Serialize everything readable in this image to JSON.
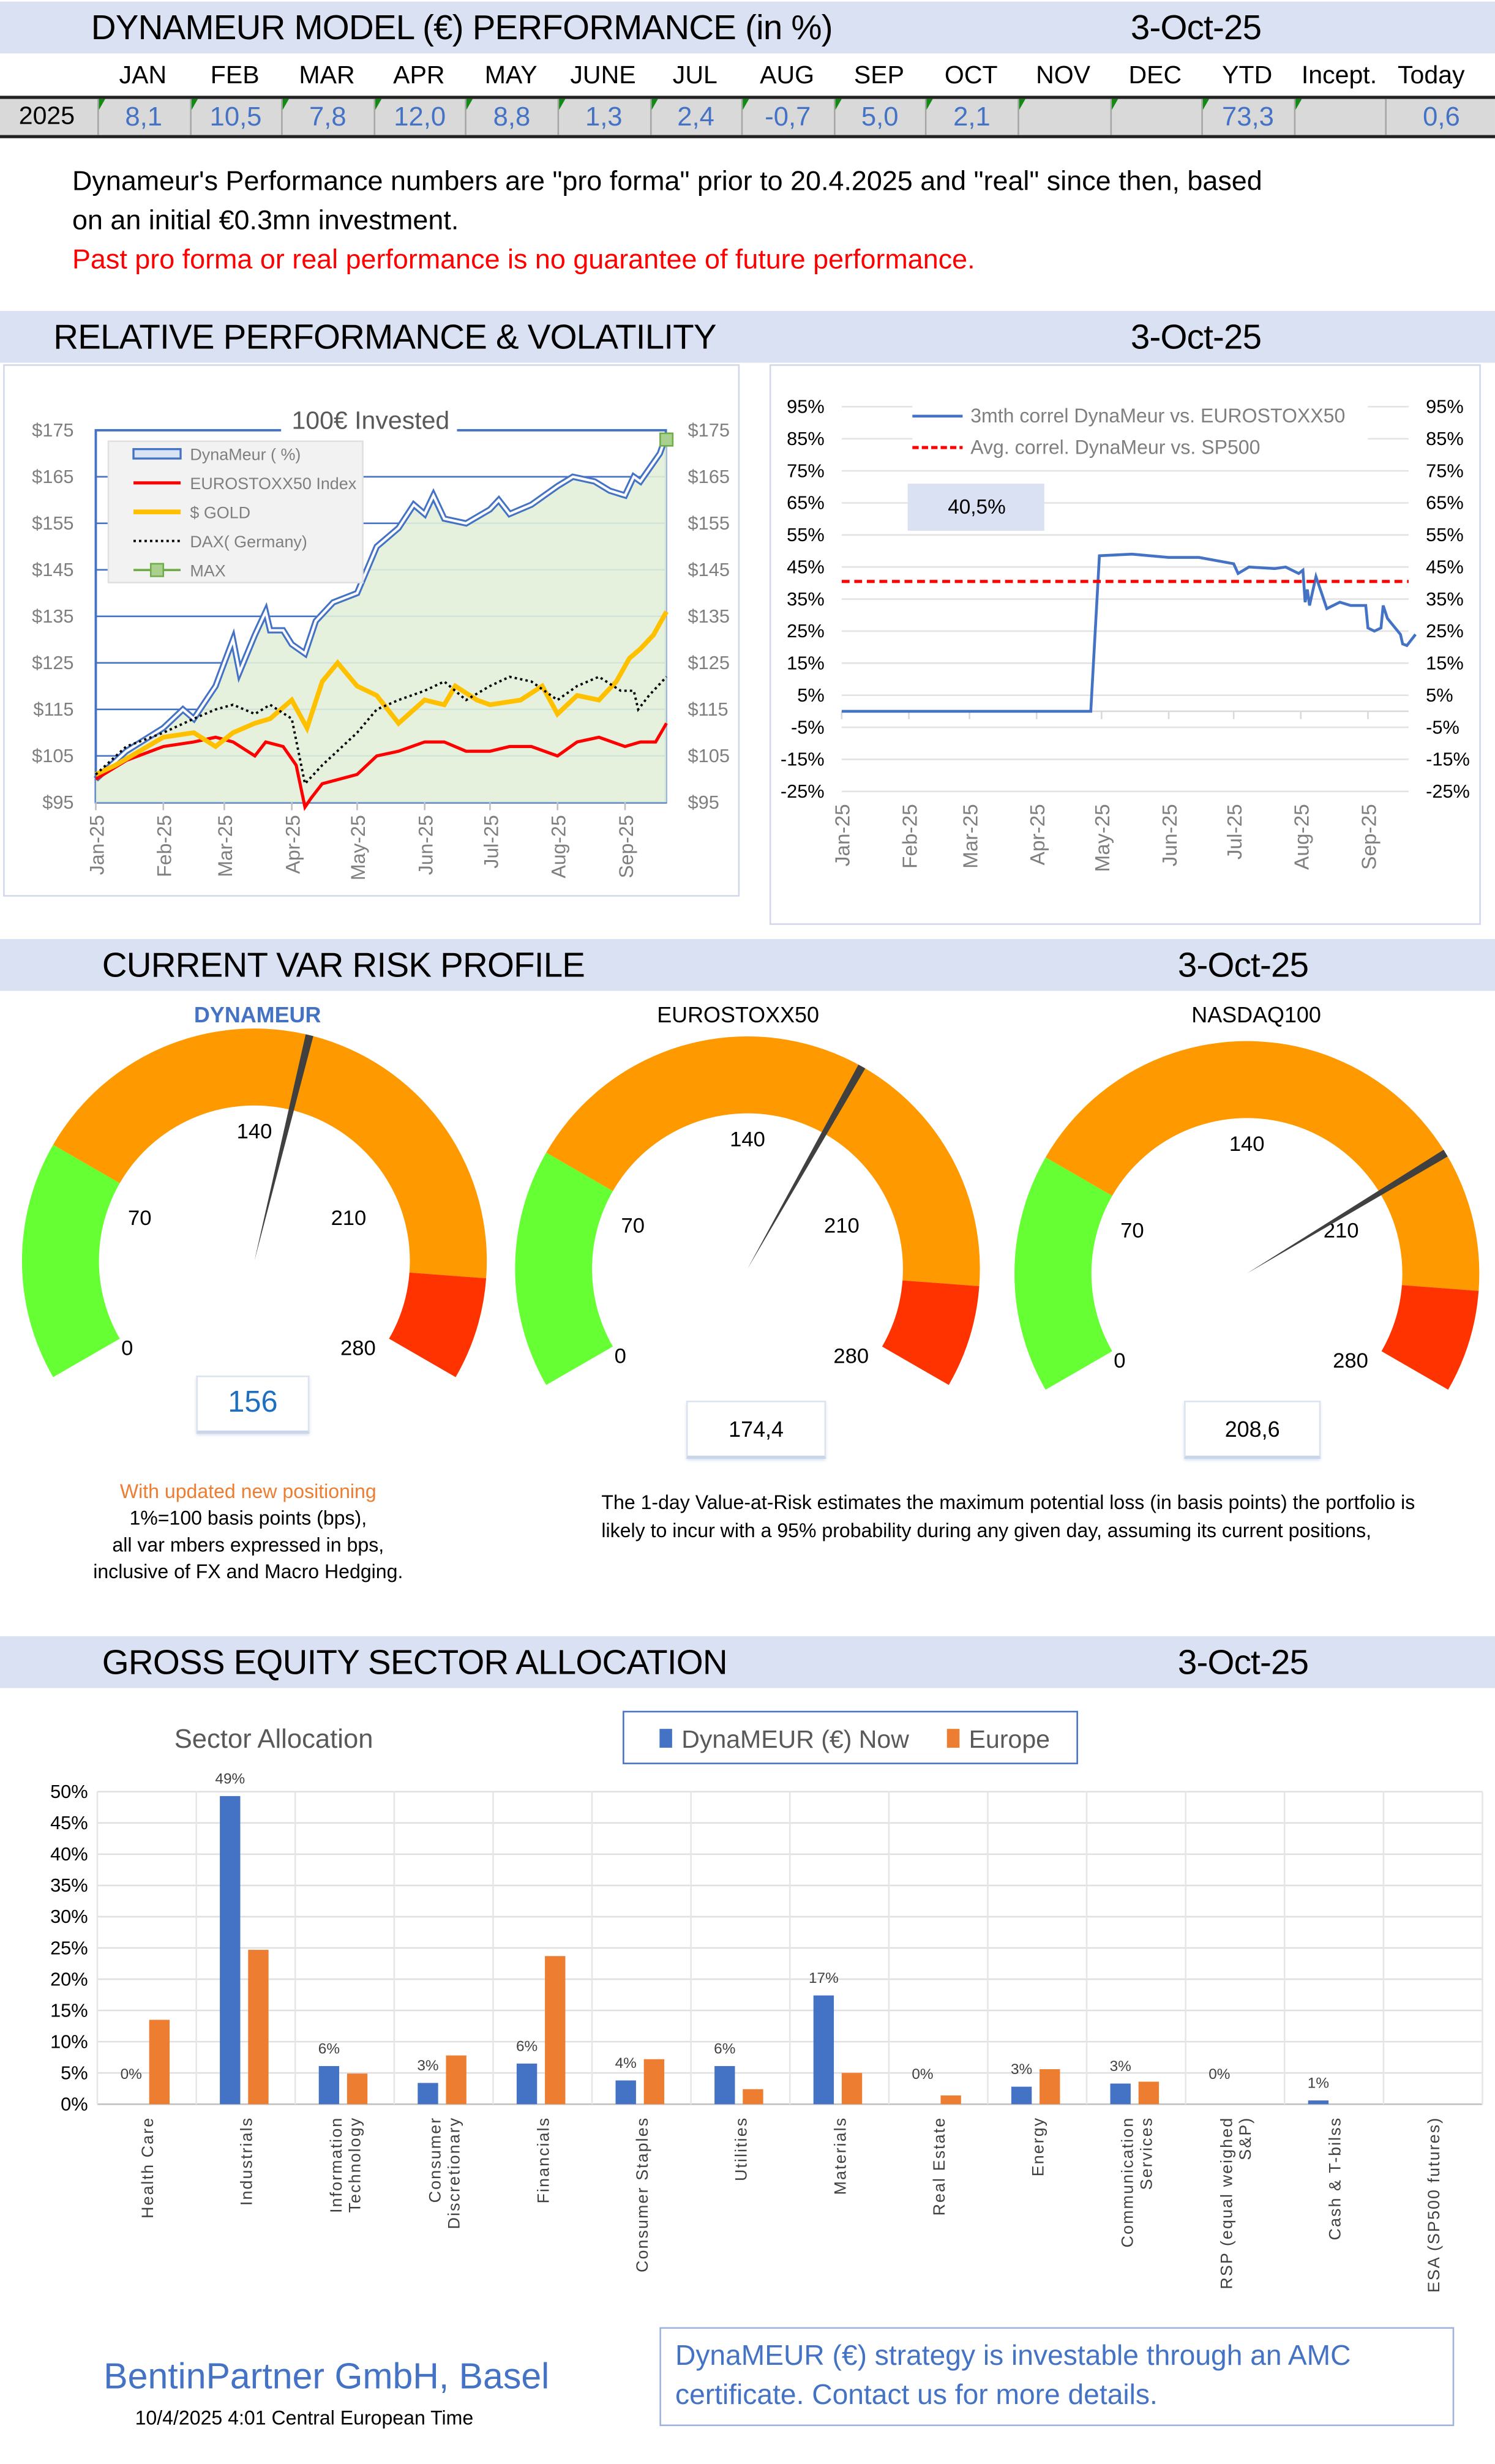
{
  "header": {
    "title": "DYNAMEUR MODEL (€) PERFORMANCE (in %)",
    "date": "3-Oct-25"
  },
  "performance_table": {
    "columns": [
      "JAN",
      "FEB",
      "MAR",
      "APR",
      "MAY",
      "JUNE",
      "JUL",
      "AUG",
      "SEP",
      "OCT",
      "NOV",
      "DEC",
      "YTD",
      "Incept.",
      "Today"
    ],
    "year": "2025",
    "values": [
      "8,1",
      "10,5",
      "7,8",
      "12,0",
      "8,8",
      "1,3",
      "2,4",
      "-0,7",
      "5,0",
      "2,1",
      "",
      "",
      "73,3",
      "",
      "0,6"
    ]
  },
  "disclaimer": {
    "line1": "Dynameur's Performance numbers are \"pro forma\" prior to 20.4.2025 and \"real\" since then, based",
    "line2": "on an initial €0.3mn investment.",
    "warning": "Past pro forma or real performance is no guarantee of future performance."
  },
  "section_relative": {
    "title": "RELATIVE PERFORMANCE & VOLATILITY",
    "date": "3-Oct-25"
  },
  "chart_data": [
    {
      "type": "line",
      "title": "100€ Invested",
      "y_ticks": [
        "$175",
        "$165",
        "$155",
        "$145",
        "$135",
        "$125",
        "$115",
        "$105",
        "$95"
      ],
      "ylim": [
        95,
        175
      ],
      "x_ticks": [
        "Jan-25",
        "Feb-25",
        "Mar-25",
        "Apr-25",
        "May-25",
        "Jun-25",
        "Jul-25",
        "Aug-25",
        "Sep-25"
      ],
      "legend_placement": "top-left",
      "colors": {
        "DynaMeur ( %)": "#4472c4",
        "EUROSTOXX50 Index": "#ff0000",
        "$ GOLD": "#ffc000",
        "DAX( Germany)": "#000000",
        "MAX": "#70ad47"
      },
      "series": [
        {
          "name": "DynaMeur ( %)",
          "points": [
            [
              "2025-01-01",
              100
            ],
            [
              "2025-01-15",
              106
            ],
            [
              "2025-02-01",
              111
            ],
            [
              "2025-02-10",
              115
            ],
            [
              "2025-02-15",
              113
            ],
            [
              "2025-02-25",
              120
            ],
            [
              "2025-03-01",
              125
            ],
            [
              "2025-03-05",
              130
            ],
            [
              "2025-03-08",
              123
            ],
            [
              "2025-03-15",
              131
            ],
            [
              "2025-03-20",
              136
            ],
            [
              "2025-03-22",
              132
            ],
            [
              "2025-03-28",
              132
            ],
            [
              "2025-04-01",
              129
            ],
            [
              "2025-04-07",
              127
            ],
            [
              "2025-04-12",
              134
            ],
            [
              "2025-04-20",
              138
            ],
            [
              "2025-05-01",
              140
            ],
            [
              "2025-05-10",
              150
            ],
            [
              "2025-05-20",
              154
            ],
            [
              "2025-05-27",
              159
            ],
            [
              "2025-06-01",
              157
            ],
            [
              "2025-06-05",
              161
            ],
            [
              "2025-06-10",
              156
            ],
            [
              "2025-06-20",
              155
            ],
            [
              "2025-07-01",
              158
            ],
            [
              "2025-07-05",
              160
            ],
            [
              "2025-07-10",
              157
            ],
            [
              "2025-07-20",
              159
            ],
            [
              "2025-08-01",
              163
            ],
            [
              "2025-08-08",
              165
            ],
            [
              "2025-08-18",
              164
            ],
            [
              "2025-08-25",
              162
            ],
            [
              "2025-09-01",
              161
            ],
            [
              "2025-09-05",
              165
            ],
            [
              "2025-09-08",
              164
            ],
            [
              "2025-09-11",
              166
            ],
            [
              "2025-09-17",
              170
            ],
            [
              "2025-09-20",
              174
            ]
          ]
        },
        {
          "name": "EUROSTOXX50 Index",
          "points": [
            [
              "2025-01-01",
              100
            ],
            [
              "2025-01-15",
              104
            ],
            [
              "2025-02-01",
              107
            ],
            [
              "2025-02-15",
              108
            ],
            [
              "2025-02-25",
              109
            ],
            [
              "2025-03-05",
              108
            ],
            [
              "2025-03-15",
              105
            ],
            [
              "2025-03-20",
              108
            ],
            [
              "2025-03-28",
              107
            ],
            [
              "2025-04-03",
              103
            ],
            [
              "2025-04-07",
              94
            ],
            [
              "2025-04-10",
              96
            ],
            [
              "2025-04-15",
              99
            ],
            [
              "2025-05-01",
              101
            ],
            [
              "2025-05-10",
              105
            ],
            [
              "2025-05-20",
              106
            ],
            [
              "2025-06-01",
              108
            ],
            [
              "2025-06-10",
              108
            ],
            [
              "2025-06-20",
              106
            ],
            [
              "2025-07-01",
              106
            ],
            [
              "2025-07-10",
              107
            ],
            [
              "2025-07-20",
              107
            ],
            [
              "2025-08-01",
              105
            ],
            [
              "2025-08-10",
              108
            ],
            [
              "2025-08-20",
              109
            ],
            [
              "2025-09-01",
              107
            ],
            [
              "2025-09-08",
              108
            ],
            [
              "2025-09-15",
              108
            ],
            [
              "2025-09-20",
              112
            ]
          ]
        },
        {
          "name": "$ GOLD",
          "points": [
            [
              "2025-01-01",
              101
            ],
            [
              "2025-01-10",
              103
            ],
            [
              "2025-02-01",
              109
            ],
            [
              "2025-02-15",
              110
            ],
            [
              "2025-02-25",
              107
            ],
            [
              "2025-03-05",
              110
            ],
            [
              "2025-03-15",
              112
            ],
            [
              "2025-03-22",
              113
            ],
            [
              "2025-04-01",
              117
            ],
            [
              "2025-04-08",
              111
            ],
            [
              "2025-04-15",
              121
            ],
            [
              "2025-04-22",
              125
            ],
            [
              "2025-05-01",
              120
            ],
            [
              "2025-05-10",
              118
            ],
            [
              "2025-05-20",
              112
            ],
            [
              "2025-06-01",
              117
            ],
            [
              "2025-06-10",
              116
            ],
            [
              "2025-06-15",
              120
            ],
            [
              "2025-06-25",
              117
            ],
            [
              "2025-07-01",
              116
            ],
            [
              "2025-07-15",
              117
            ],
            [
              "2025-07-25",
              120
            ],
            [
              "2025-08-01",
              114
            ],
            [
              "2025-08-10",
              118
            ],
            [
              "2025-08-20",
              117
            ],
            [
              "2025-08-28",
              121
            ],
            [
              "2025-09-03",
              126
            ],
            [
              "2025-09-08",
              128
            ],
            [
              "2025-09-14",
              131
            ],
            [
              "2025-09-20",
              136
            ]
          ]
        },
        {
          "name": "DAX( Germany)",
          "points": [
            [
              "2025-01-01",
              101
            ],
            [
              "2025-01-15",
              107
            ],
            [
              "2025-02-01",
              110
            ],
            [
              "2025-02-15",
              113
            ],
            [
              "2025-02-25",
              115
            ],
            [
              "2025-03-05",
              116
            ],
            [
              "2025-03-15",
              114
            ],
            [
              "2025-03-22",
              116
            ],
            [
              "2025-04-01",
              113
            ],
            [
              "2025-04-07",
              99
            ],
            [
              "2025-04-15",
              103
            ],
            [
              "2025-05-01",
              110
            ],
            [
              "2025-05-10",
              115
            ],
            [
              "2025-05-20",
              117
            ],
            [
              "2025-06-01",
              119
            ],
            [
              "2025-06-10",
              121
            ],
            [
              "2025-06-20",
              117
            ],
            [
              "2025-07-01",
              120
            ],
            [
              "2025-07-10",
              122
            ],
            [
              "2025-07-20",
              121
            ],
            [
              "2025-08-01",
              117
            ],
            [
              "2025-08-10",
              120
            ],
            [
              "2025-08-20",
              122
            ],
            [
              "2025-08-30",
              119
            ],
            [
              "2025-09-05",
              119
            ],
            [
              "2025-09-07",
              115
            ],
            [
              "2025-09-12",
              118
            ],
            [
              "2025-09-20",
              122
            ]
          ]
        },
        {
          "name": "MAX",
          "points": [
            [
              "2025-09-20",
              173
            ]
          ]
        }
      ]
    },
    {
      "type": "line",
      "y_ticks": [
        "95%",
        "85%",
        "75%",
        "65%",
        "55%",
        "45%",
        "35%",
        "25%",
        "15%",
        "5%",
        "-5%",
        "-15%",
        "-25%"
      ],
      "ylim": [
        -25,
        95
      ],
      "x_ticks": [
        "Jan-25",
        "Feb-25",
        "Mar-25",
        "Apr-25",
        "May-25",
        "Jun-25",
        "Jul-25",
        "Aug-25",
        "Sep-25"
      ],
      "legend_placement": "top",
      "annotation": "40,5%",
      "colors": {
        "3mth correl DynaMeur vs. EUROSTOXX50": "#4472c4",
        "Avg. correl. DynaMeur vs. SP500": "#ff0000"
      },
      "series": [
        {
          "name": "3mth correl DynaMeur vs. EUROSTOXX50",
          "points": [
            [
              "2025-01-01",
              0
            ],
            [
              "2025-04-26",
              0
            ],
            [
              "2025-04-30",
              48.5
            ],
            [
              "2025-05-15",
              49
            ],
            [
              "2025-06-01",
              48
            ],
            [
              "2025-06-15",
              48
            ],
            [
              "2025-07-01",
              46
            ],
            [
              "2025-07-03",
              43
            ],
            [
              "2025-07-08",
              45
            ],
            [
              "2025-07-20",
              44.5
            ],
            [
              "2025-07-25",
              45
            ],
            [
              "2025-07-31",
              43
            ],
            [
              "2025-08-02",
              44
            ],
            [
              "2025-08-03",
              34
            ],
            [
              "2025-08-04",
              38
            ],
            [
              "2025-08-05",
              33
            ],
            [
              "2025-08-08",
              42
            ],
            [
              "2025-08-10",
              38
            ],
            [
              "2025-08-13",
              32
            ],
            [
              "2025-08-19",
              34
            ],
            [
              "2025-08-24",
              33
            ],
            [
              "2025-08-31",
              33
            ],
            [
              "2025-09-01",
              26
            ],
            [
              "2025-09-04",
              25
            ],
            [
              "2025-09-07",
              26
            ],
            [
              "2025-09-08",
              33
            ],
            [
              "2025-09-10",
              29
            ],
            [
              "2025-09-16",
              24
            ],
            [
              "2025-09-17",
              21
            ],
            [
              "2025-09-19",
              20.5
            ],
            [
              "2025-09-23",
              24
            ]
          ]
        },
        {
          "name": "Avg. correl. DynaMeur vs. SP500",
          "points": [
            [
              "2025-01-01",
              40.5
            ],
            [
              "2025-09-23",
              40.5
            ]
          ]
        }
      ]
    },
    {
      "type": "bar",
      "title": "Sector Allocation",
      "categories": [
        "Health Care",
        "Industrials",
        "Information Technology",
        "Consumer Discretionary",
        "Financials",
        "Consumer Staples",
        "Utilities",
        "Materials",
        "Real Estate",
        "Energy",
        "Communication Services",
        "RSP (equal weighed S&P)",
        "Cash & T-bilss",
        "ESA (SP500 futures)"
      ],
      "category_lines": [
        [
          "Health Care"
        ],
        [
          "Industrials"
        ],
        [
          "Information",
          "Technology"
        ],
        [
          "Consumer",
          "Discretionary"
        ],
        [
          "Financials"
        ],
        [
          "Consumer Staples"
        ],
        [
          "Utilities"
        ],
        [
          "Materials"
        ],
        [
          "Real Estate"
        ],
        [
          "Energy"
        ],
        [
          "Communication",
          "Services"
        ],
        [
          "RSP (equal weighed",
          "S&P)"
        ],
        [
          "Cash & T-bilss"
        ],
        [
          "ESA (SP500 futures)"
        ]
      ],
      "y_ticks": [
        "50%",
        "45%",
        "40%",
        "35%",
        "30%",
        "25%",
        "20%",
        "15%",
        "10%",
        "5%",
        "0%"
      ],
      "ylim": [
        0,
        50
      ],
      "legend_placement": "top",
      "series": [
        {
          "name": "DynaMEUR (€) Now",
          "color": "#4472c4",
          "values": [
            0,
            49.3,
            6.1,
            3.4,
            6.5,
            3.8,
            6.1,
            17.4,
            0,
            2.8,
            3.3,
            0,
            0.6,
            0
          ],
          "labels": [
            "0%",
            "49%",
            "6%",
            "3%",
            "6%",
            "4%",
            "6%",
            "17%",
            "0%",
            "3%",
            "3%",
            "0%",
            "1%",
            ""
          ]
        },
        {
          "name": "Europe",
          "color": "#ed7d31",
          "values": [
            13.5,
            24.7,
            4.9,
            7.8,
            23.7,
            7.2,
            2.4,
            5.0,
            1.4,
            5.6,
            3.6,
            0,
            0,
            0
          ]
        }
      ]
    }
  ],
  "section_var": {
    "title": "CURRENT VAR RISK PROFILE",
    "date": "3-Oct-25"
  },
  "gauges": [
    {
      "title": "DYNAMEUR",
      "value": 156,
      "value_label": "156",
      "title_color": "#4472c4"
    },
    {
      "title": "EUROSTOXX50",
      "value": 174.4,
      "value_label": "174,4"
    },
    {
      "title": "NASDAQ100",
      "value": 208.6,
      "value_label": "208,6"
    }
  ],
  "gauge_scale": {
    "ticks": [
      "0",
      "70",
      "140",
      "210",
      "280"
    ],
    "min": 0,
    "max": 280,
    "bands": [
      {
        "from": 0,
        "to": 70,
        "color": "#66ff33"
      },
      {
        "from": 70,
        "to": 250,
        "color": "#ff9900"
      },
      {
        "from": 250,
        "to": 280,
        "color": "#ff3300"
      }
    ]
  },
  "var_notes": {
    "orange_line": "With updated new positioning",
    "line1": "1%=100 basis points (bps),",
    "line2": "all var mbers expressed in bps,",
    "line3": "inclusive of FX and Macro Hedging.",
    "desc1": "The 1-day Value-at-Risk estimates the maximum potential loss (in basis points) the portfolio is",
    "desc2": "likely to incur with a 95% probability during any given day, assuming its current positions,"
  },
  "section_sector": {
    "title": "GROSS EQUITY SECTOR ALLOCATION",
    "date": "3-Oct-25"
  },
  "footer": {
    "company": "BentinPartner GmbH, Basel",
    "timestamp": "10/4/2025 4:01  Central European Time",
    "cta_line1": "DynaMEUR (€) strategy is  investable through an AMC",
    "cta_line2": "certificate. Contact us for more details."
  }
}
